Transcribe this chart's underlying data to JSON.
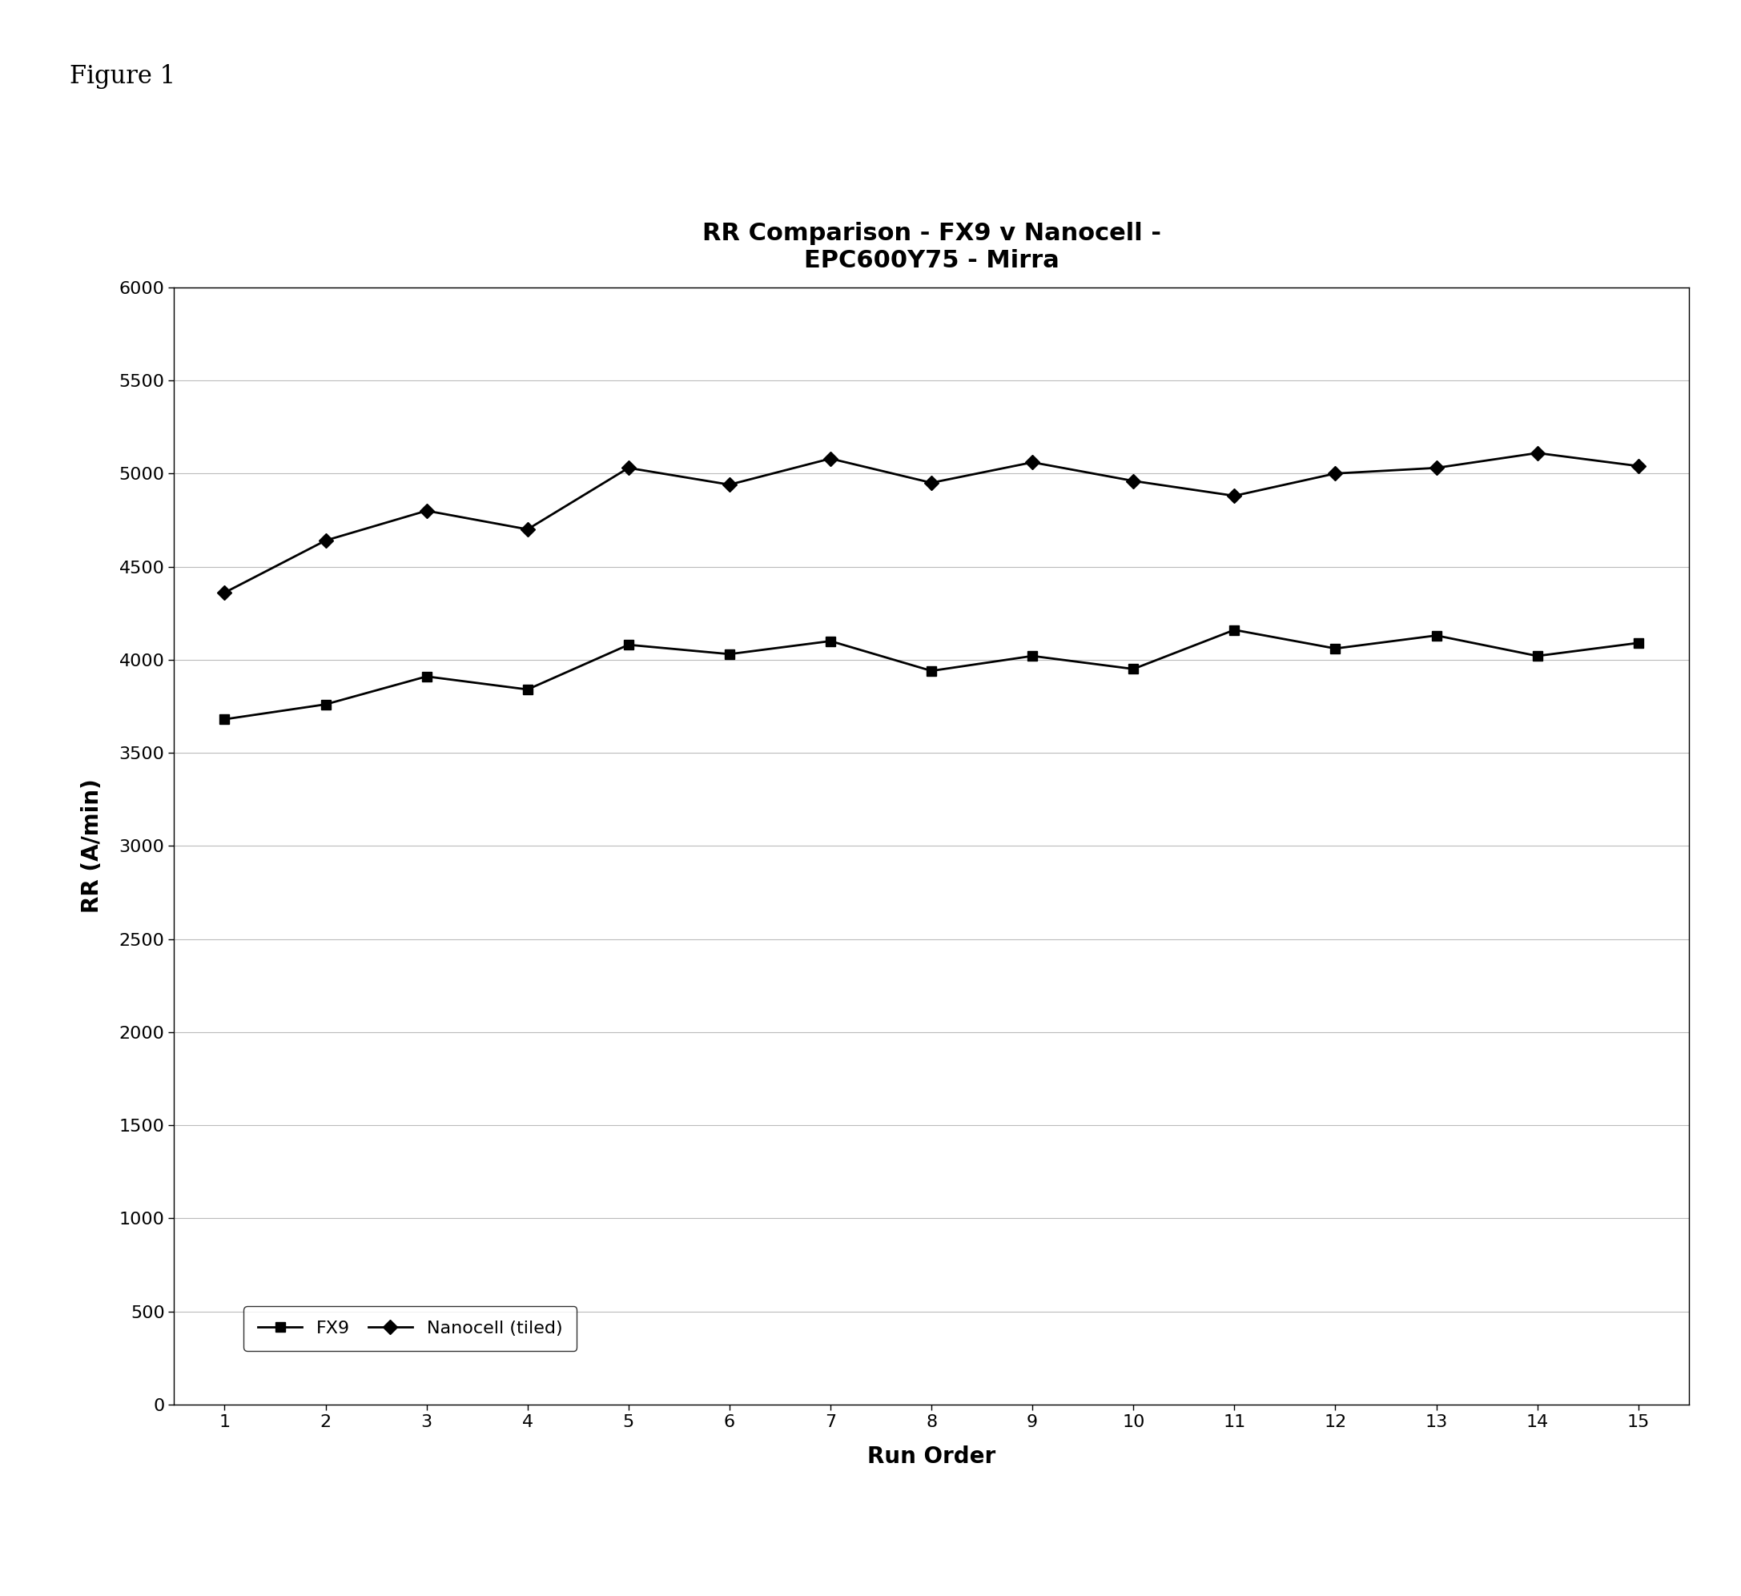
{
  "title": "RR Comparison - FX9 v Nanocell -\nEPC600Y75 - Mirra",
  "xlabel": "Run Order",
  "ylabel": "RR (A/min)",
  "figure_label": "Figure 1",
  "x": [
    1,
    2,
    3,
    4,
    5,
    6,
    7,
    8,
    9,
    10,
    11,
    12,
    13,
    14,
    15
  ],
  "fx9": [
    3680,
    3760,
    3910,
    3840,
    4080,
    4030,
    4100,
    3940,
    4020,
    3950,
    4160,
    4060,
    4130,
    4020,
    4090
  ],
  "nanocell": [
    4360,
    4640,
    4800,
    4700,
    5030,
    4940,
    5080,
    4950,
    5060,
    4960,
    4880,
    5000,
    5030,
    5110,
    5040
  ],
  "ylim": [
    0,
    6000
  ],
  "yticks": [
    0,
    500,
    1000,
    1500,
    2000,
    2500,
    3000,
    3500,
    4000,
    4500,
    5000,
    5500,
    6000
  ],
  "xlim": [
    0.5,
    15.5
  ],
  "xticks": [
    1,
    2,
    3,
    4,
    5,
    6,
    7,
    8,
    9,
    10,
    11,
    12,
    13,
    14,
    15
  ],
  "line_color": "#000000",
  "marker_square": "s",
  "marker_diamond": "D",
  "marker_size": 9,
  "line_width": 2,
  "legend_labels": [
    "FX9",
    "Nanocell (tiled)"
  ],
  "background_color": "#ffffff",
  "title_fontsize": 22,
  "label_fontsize": 20,
  "tick_fontsize": 16,
  "legend_fontsize": 16,
  "figure_label_fontsize": 22,
  "grid_color": "#bbbbbb",
  "grid_linewidth": 0.8
}
